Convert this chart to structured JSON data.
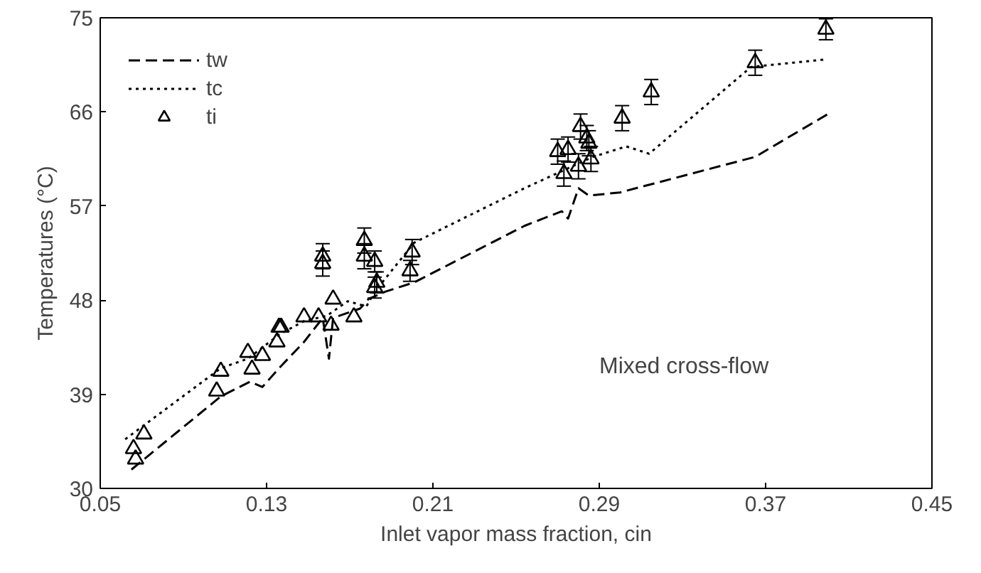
{
  "chart_data": {
    "type": "scatter",
    "xlabel": "Inlet vapor mass fraction, cin",
    "ylabel": "Temperatures (°C)",
    "annotations": [
      "Mixed cross-flow"
    ],
    "xlim": [
      0.05,
      0.45
    ],
    "ylim": [
      30,
      75
    ],
    "xticks": [
      0.05,
      0.13,
      0.21,
      0.29,
      0.37,
      0.45
    ],
    "yticks": [
      30,
      39,
      48,
      57,
      66,
      75
    ],
    "grid": false,
    "legend": "top left",
    "series": [
      {
        "name": "tw",
        "type": "line",
        "line_style": "dashed",
        "marker": "none",
        "color": "#000000",
        "x": [
          0.065,
          0.108,
          0.122,
          0.128,
          0.136,
          0.148,
          0.157,
          0.16,
          0.162,
          0.175,
          0.179,
          0.187,
          0.201,
          0.254,
          0.272,
          0.275,
          0.28,
          0.285,
          0.3,
          0.365,
          0.4
        ],
        "values": [
          31.8,
          38.8,
          40.2,
          39.7,
          41.5,
          44.0,
          46.3,
          42.4,
          46.3,
          47.2,
          48.1,
          48.8,
          49.7,
          55.1,
          56.5,
          55.8,
          58.7,
          58.0,
          58.3,
          61.7,
          65.8
        ]
      },
      {
        "name": "tc",
        "type": "line",
        "line_style": "dotted",
        "marker": "none",
        "color": "#000000",
        "x": [
          0.062,
          0.108,
          0.121,
          0.136,
          0.148,
          0.159,
          0.169,
          0.178,
          0.182,
          0.201,
          0.254,
          0.287,
          0.303,
          0.314,
          0.363,
          0.398
        ],
        "values": [
          34.7,
          41.5,
          42.4,
          44.7,
          46.0,
          46.5,
          47.9,
          47.4,
          48.8,
          53.5,
          58.7,
          61.7,
          62.7,
          62.0,
          70.3,
          71.0
        ]
      },
      {
        "name": "ti",
        "marker": "triangle",
        "color": "#000000",
        "x": [
          0.066,
          0.067,
          0.071,
          0.106,
          0.108,
          0.121,
          0.123,
          0.128,
          0.135,
          0.136,
          0.137,
          0.148,
          0.155,
          0.157,
          0.157,
          0.161,
          0.162,
          0.172,
          0.177,
          0.177,
          0.182,
          0.182,
          0.183,
          0.199,
          0.2,
          0.27,
          0.273,
          0.275,
          0.28,
          0.281,
          0.284,
          0.285,
          0.286,
          0.301,
          0.315,
          0.365,
          0.399
        ],
        "values": [
          33.8,
          32.8,
          35.2,
          39.3,
          41.2,
          43.0,
          41.4,
          42.7,
          44.0,
          45.4,
          45.4,
          46.4,
          46.4,
          52.2,
          51.5,
          45.6,
          48.1,
          46.4,
          53.7,
          52.2,
          49.2,
          51.7,
          49.7,
          50.8,
          52.6,
          62.2,
          60.1,
          62.4,
          60.8,
          64.6,
          63.5,
          63.0,
          61.5,
          65.4,
          67.9,
          70.7,
          73.9
        ],
        "errors": [
          null,
          null,
          null,
          null,
          null,
          null,
          null,
          null,
          null,
          null,
          null,
          null,
          null,
          1.2,
          1.2,
          null,
          null,
          null,
          1.2,
          1.2,
          1.0,
          1.0,
          1.0,
          1.0,
          1.2,
          1.2,
          1.2,
          1.2,
          1.2,
          1.2,
          1.2,
          1.2,
          1.2,
          1.2,
          1.2,
          1.2,
          1.0
        ]
      }
    ]
  }
}
